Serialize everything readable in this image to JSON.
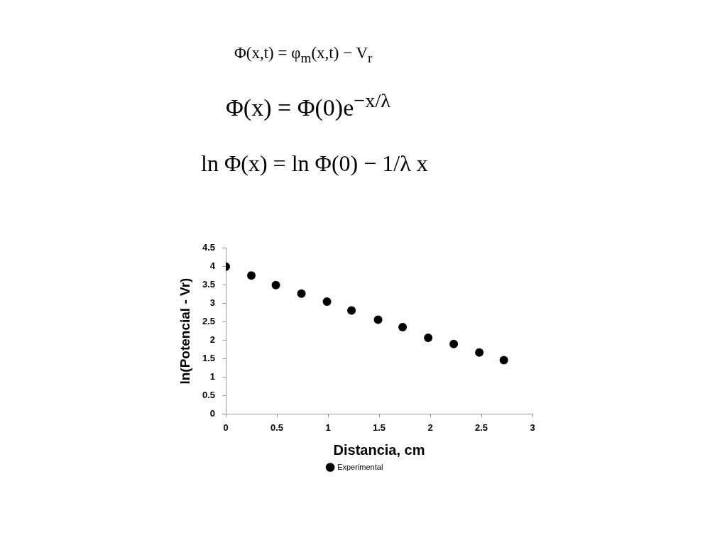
{
  "chart_data": {
    "type": "scatter",
    "annotations": [
      "Φ(x,t) = φ$_{m}$(x,t) − V$_{r}$",
      "Φ(x) = Φ(0)e$^{−x/λ}$",
      "ln Φ(x) = ln Φ(0) − 1/λ x"
    ],
    "xlabel": "Distancia, cm",
    "ylabel": "ln(Potencial - Vr)",
    "x": [
      0,
      0.25,
      0.49,
      0.74,
      0.99,
      1.23,
      1.49,
      1.73,
      1.98,
      2.23,
      2.48,
      2.72
    ],
    "series": [
      {
        "name": "Experimental",
        "color": "#000000",
        "values": [
          4.0,
          3.76,
          3.5,
          3.27,
          3.05,
          2.81,
          2.56,
          2.36,
          2.07,
          1.9,
          1.67,
          1.46
        ]
      }
    ],
    "xlim": [
      0,
      3
    ],
    "xticks": [
      0,
      0.5,
      1,
      1.5,
      2,
      2.5,
      3
    ],
    "ylim": [
      0,
      4.5
    ],
    "yticks": [
      0,
      0.5,
      1,
      1.5,
      2,
      2.5,
      3,
      3.5,
      4,
      4.5
    ],
    "legend": "bottom",
    "marker": "circle"
  }
}
